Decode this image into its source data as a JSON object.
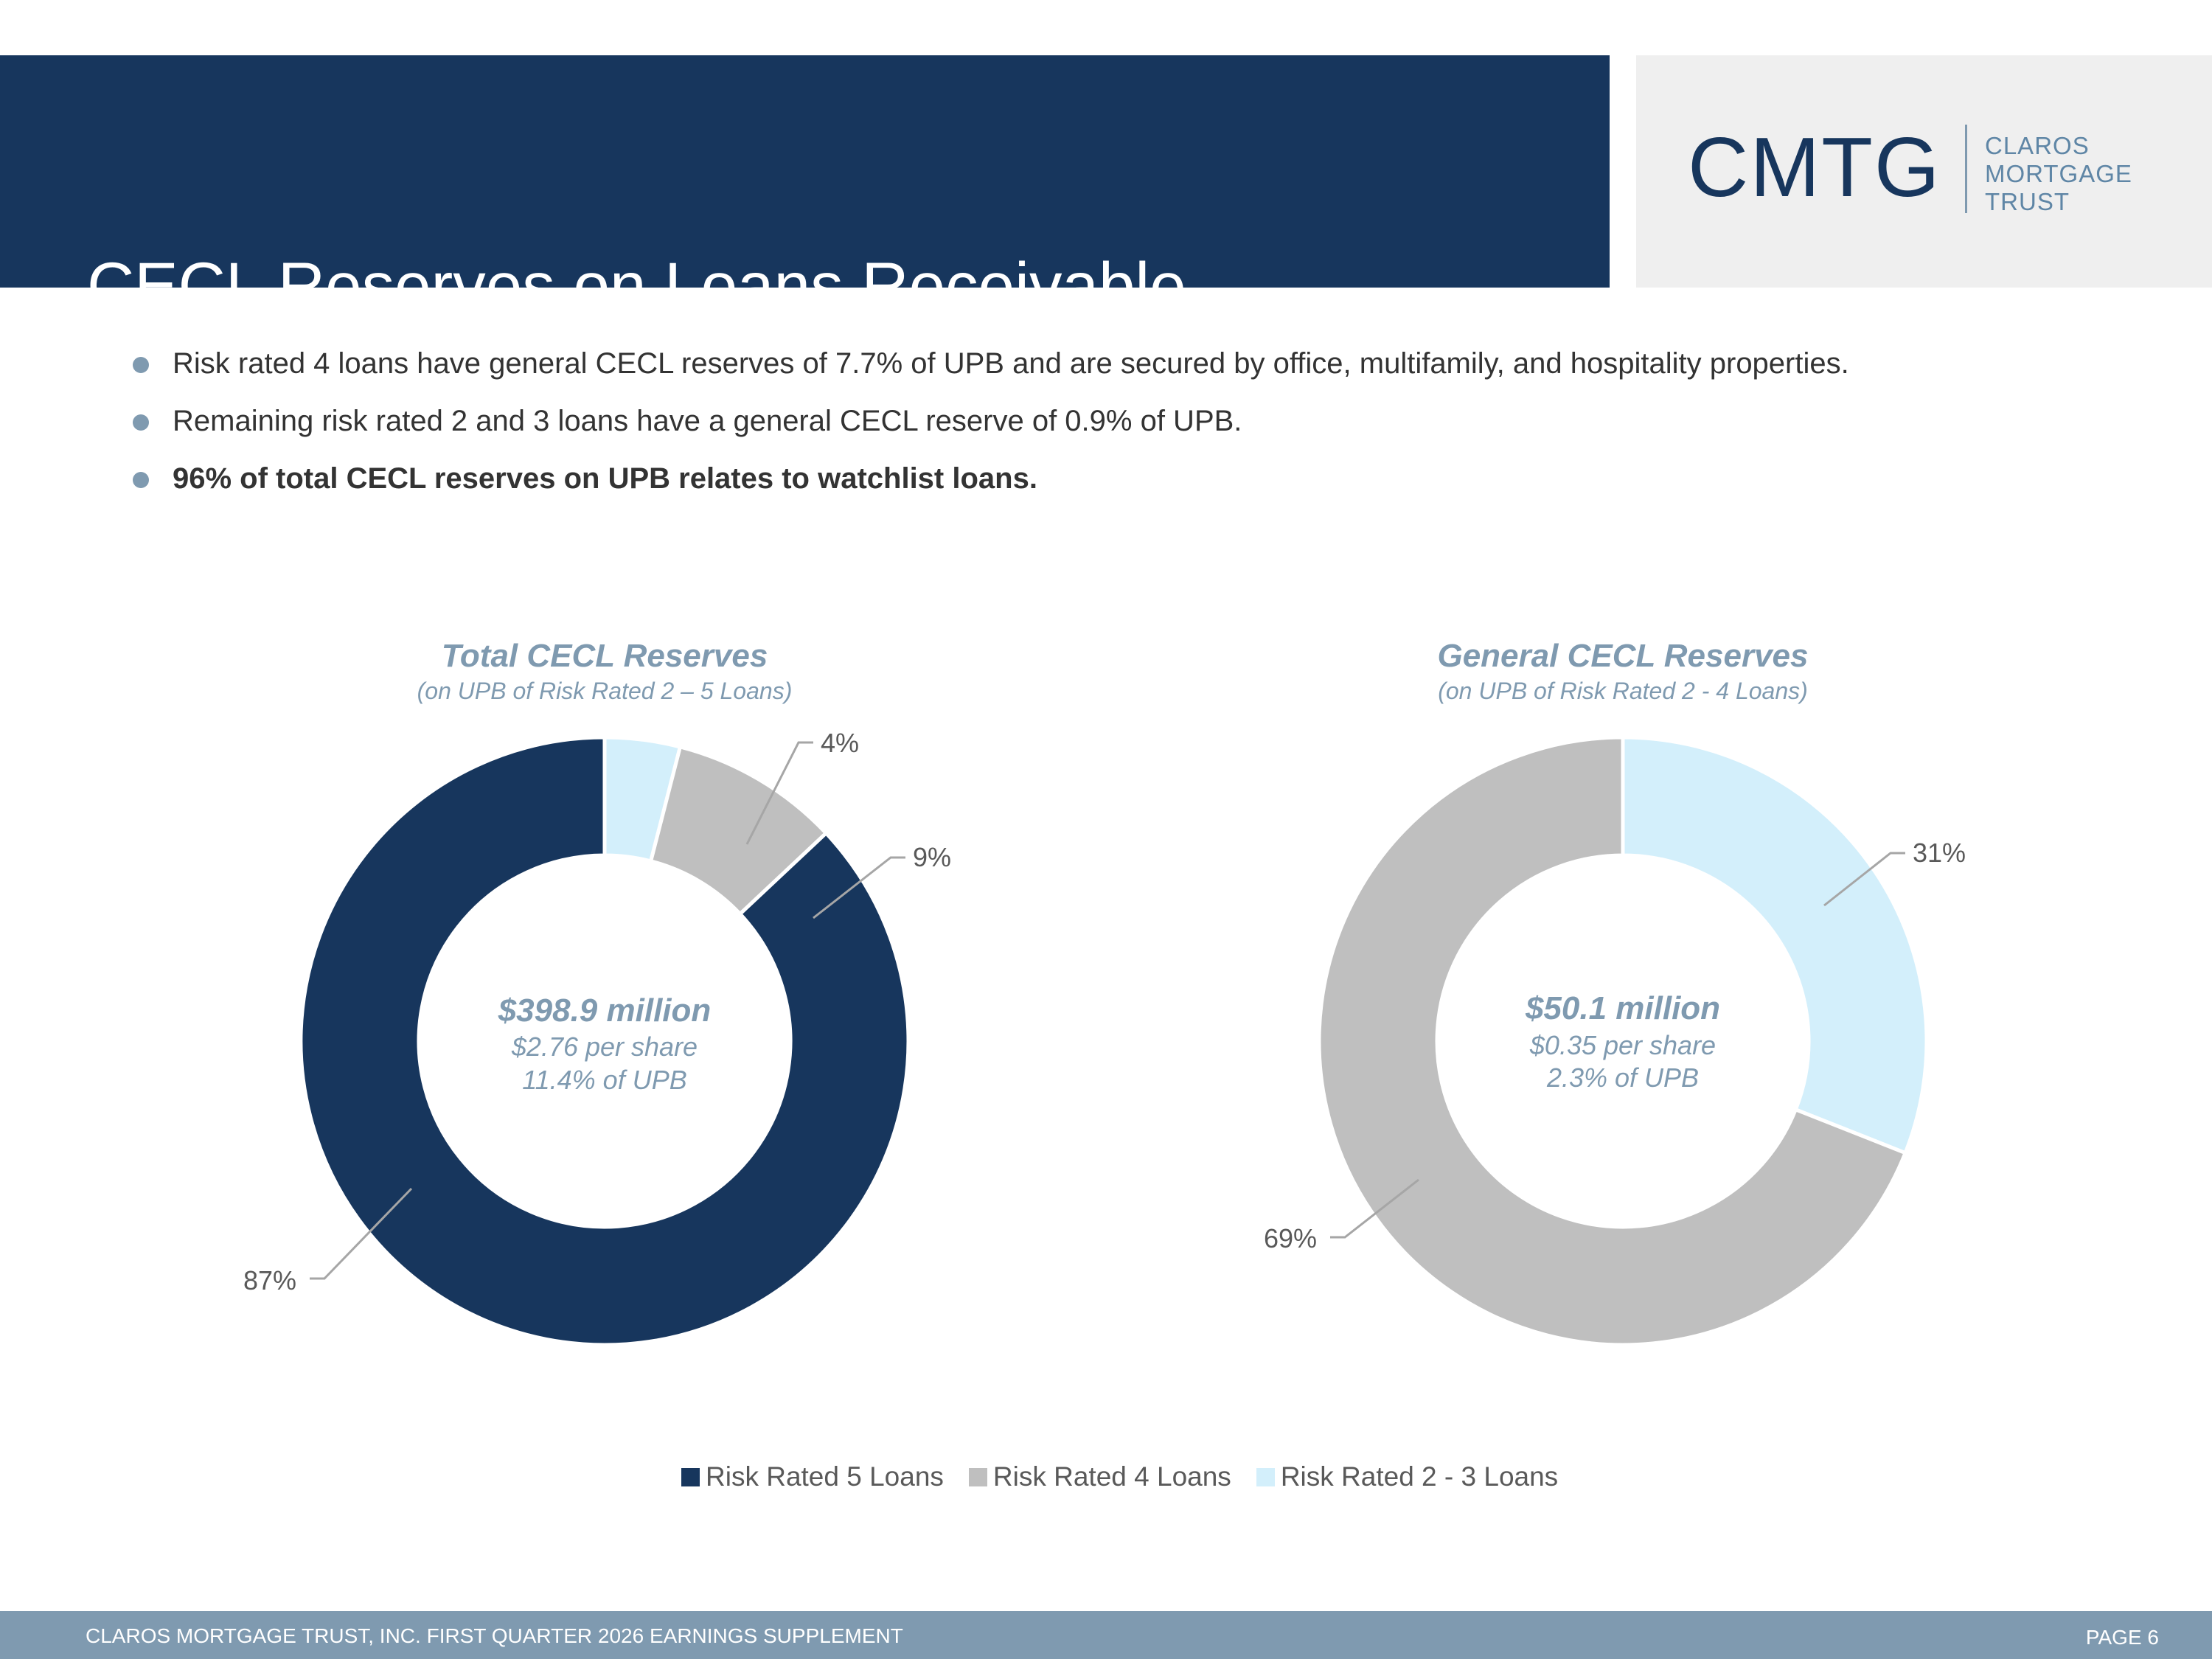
{
  "header": {
    "title": "CECL Reserves on Loans Receivable",
    "logo": {
      "mark": "CMTG",
      "lines": [
        "CLAROS",
        "MORTGAGE",
        "TRUST"
      ]
    }
  },
  "bullets": [
    "Risk rated 4 loans have general CECL reserves of 7.7% of UPB and are secured by office, multifamily, and hospitality properties.",
    "Remaining risk rated 2 and 3 loans have a general CECL reserve of 0.9% of UPB.",
    "96% of total CECL reserves on UPB relates to watchlist loans."
  ],
  "colors": {
    "navy": "#17365d",
    "gray": "#bfbfbf",
    "light_blue": "#d3effb",
    "accent": "#7f9ab0"
  },
  "chart_data": [
    {
      "type": "pie",
      "title": "Total CECL Reserves",
      "subtitle": "(on UPB of Risk Rated 2 – 5 Loans)",
      "center": {
        "amount": "$398.9 million",
        "per_share": "$2.76 per share",
        "of_upb": "11.4% of UPB"
      },
      "slices": [
        {
          "name": "Risk Rated 2 - 3 Loans",
          "value": 4,
          "label": "4%"
        },
        {
          "name": "Risk Rated 4 Loans",
          "value": 9,
          "label": "9%"
        },
        {
          "name": "Risk Rated 5 Loans",
          "value": 87,
          "label": "87%"
        }
      ]
    },
    {
      "type": "pie",
      "title": "General CECL Reserves",
      "subtitle": "(on UPB of Risk Rated 2 - 4 Loans)",
      "center": {
        "amount": "$50.1 million",
        "per_share": "$0.35 per share",
        "of_upb": "2.3% of UPB"
      },
      "slices": [
        {
          "name": "Risk Rated 2 - 3 Loans",
          "value": 31,
          "label": "31%"
        },
        {
          "name": "Risk Rated 4 Loans",
          "value": 69,
          "label": "69%"
        }
      ]
    }
  ],
  "legend": [
    {
      "label": "Risk Rated 5 Loans",
      "color": "#17365d"
    },
    {
      "label": "Risk Rated 4 Loans",
      "color": "#bfbfbf"
    },
    {
      "label": "Risk Rated 2 - 3 Loans",
      "color": "#d3effb"
    }
  ],
  "footer": {
    "left": "CLAROS MORTGAGE TRUST, INC. FIRST QUARTER 2026 EARNINGS SUPPLEMENT",
    "right": "PAGE 6"
  }
}
